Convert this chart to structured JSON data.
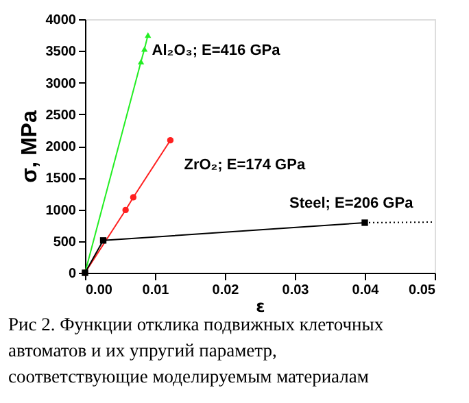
{
  "chart_data": {
    "type": "line",
    "xlabel": "ε",
    "ylabel": "σ, MPa",
    "xlim": [
      0,
      0.05
    ],
    "xticks": [
      {
        "value": 0,
        "label": "0.00"
      },
      {
        "value": 0.01,
        "label": "0.01"
      },
      {
        "value": 0.02,
        "label": "0.02"
      },
      {
        "value": 0.03,
        "label": "0.03"
      },
      {
        "value": 0.04,
        "label": "0.04"
      },
      {
        "value": 0.05,
        "label": "0.05"
      }
    ],
    "ylim": [
      0,
      4000
    ],
    "yticks": [
      0,
      500,
      1000,
      1500,
      2000,
      2500,
      3000,
      3500,
      4000
    ],
    "grid": false,
    "series": [
      {
        "name": "Al₂O₃;  E=416 GPa",
        "color": "#22ee22",
        "marker": "triangle",
        "x": [
          0,
          0.008,
          0.0085,
          0.009
        ],
        "values": [
          0,
          3330,
          3530,
          3750
        ]
      },
      {
        "name": "ZrO₂;  E=174 GPa",
        "color": "#ff2020",
        "marker": "circle",
        "x": [
          0,
          0.0058,
          0.0069,
          0.0122
        ],
        "values": [
          0,
          990,
          1190,
          2090
        ]
      },
      {
        "name": "Steel;  E=206 GPa",
        "color": "#000000",
        "marker": "square",
        "x": [
          0,
          0.0026,
          0.04
        ],
        "values": [
          0,
          510,
          790
        ]
      },
      {
        "color": "#000000",
        "marker": "none",
        "line_style": "dotted",
        "x": [
          0.04,
          0.05
        ],
        "values": [
          790,
          800
        ]
      }
    ],
    "annotations": [
      "Рис 2. Функции отклика подвижных клеточных автоматов и их упругий параметр, соответствующие моделируемым материалам"
    ]
  }
}
